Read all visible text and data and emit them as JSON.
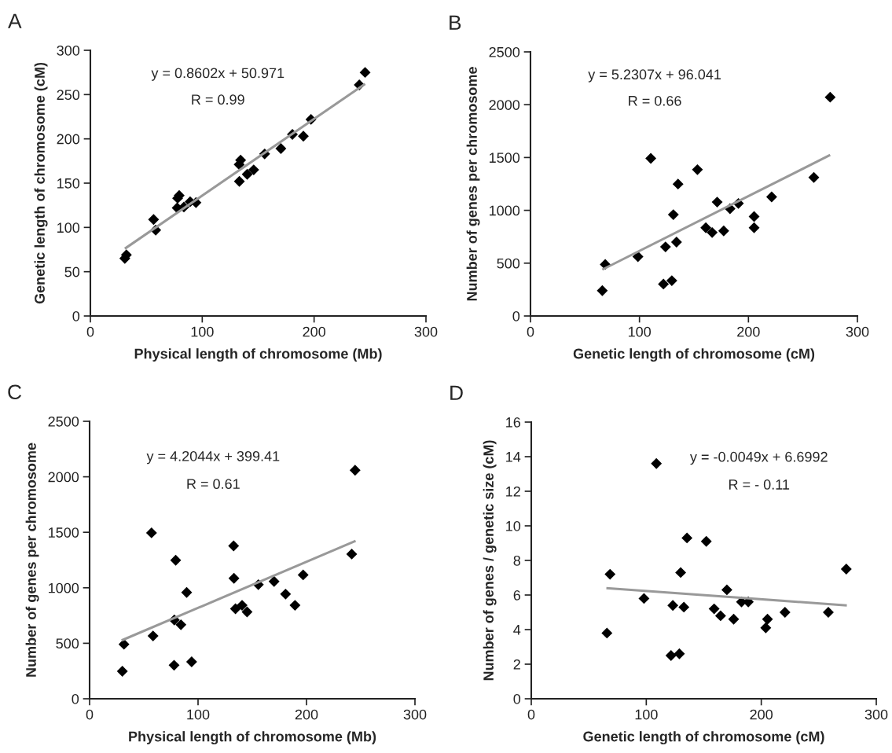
{
  "chart_data": [
    {
      "type": "scatter",
      "title": "A",
      "xlabel": "Physical length of chromosome (Mb)",
      "ylabel": "Genetic length of chromosome (cM)",
      "xlim": [
        0,
        300
      ],
      "xticks": [
        0,
        100,
        200,
        300
      ],
      "ylim": [
        0,
        300
      ],
      "yticks": [
        0,
        50,
        100,
        150,
        200,
        250,
        300
      ],
      "grid": false,
      "annotations": [
        "y = 0.8602x + 50.971",
        "R = 0.99"
      ],
      "series": [
        {
          "marker": "diamond",
          "color": "#000000",
          "x": [
            30.8,
            32.2,
            56.5,
            58.4,
            77.6,
            78,
            79.4,
            83.6,
            89.2,
            94.4,
            133,
            134.3,
            133.2,
            140.2,
            146,
            155.8,
            170.3,
            180.6,
            190.4,
            197.2,
            240.4,
            245.6
          ],
          "values": [
            65,
            69,
            109,
            97,
            122,
            133,
            136,
            123,
            129,
            128,
            171,
            176,
            152,
            160,
            165,
            183,
            189,
            205,
            203,
            222,
            261,
            275
          ]
        },
        {
          "type": "line",
          "marker": "none",
          "color": "#999999",
          "x": [
            30.8,
            245.6
          ],
          "values": [
            76,
            262
          ]
        }
      ]
    },
    {
      "type": "scatter",
      "title": "B",
      "xlabel": "Genetic length of chromosome (cM)",
      "ylabel": "Number of genes per chromosome",
      "xlim": [
        0,
        300
      ],
      "xticks": [
        0,
        100,
        200,
        300
      ],
      "ylim": [
        0,
        2500
      ],
      "yticks": [
        0,
        500,
        1000,
        1500,
        2000,
        2500
      ],
      "grid": false,
      "annotations": [
        "y = 5.2307x + 96.041",
        "R = 0.66"
      ],
      "series": [
        {
          "marker": "diamond",
          "color": "#000000",
          "x": [
            65.9,
            68.6,
            98.6,
            110.4,
            122,
            123.9,
            129.7,
            131.1,
            134,
            135.4,
            153.2,
            160.9,
            166.7,
            171.3,
            177.3,
            183.1,
            190.8,
            205.2,
            205.2,
            221.3,
            260,
            275
          ],
          "values": [
            240,
            488,
            562,
            1492,
            302,
            654,
            334,
            959,
            699,
            1249,
            1385,
            835,
            790,
            1078,
            805,
            1016,
            1065,
            941,
            835,
            1127,
            1311,
            2071
          ]
        },
        {
          "type": "line",
          "marker": "none",
          "color": "#999999",
          "x": [
            65.9,
            275
          ],
          "values": [
            439,
            1524
          ]
        }
      ]
    },
    {
      "type": "scatter",
      "title": "C",
      "xlabel": "Physical length of chromosome (Mb)",
      "ylabel": "Number of genes per chromosome",
      "xlim": [
        0,
        300
      ],
      "xticks": [
        0,
        100,
        200,
        300
      ],
      "ylim": [
        0,
        2500
      ],
      "yticks": [
        0,
        500,
        1000,
        1500,
        2000,
        2500
      ],
      "grid": false,
      "annotations": [
        "y = 4.2044x + 399.41",
        "R = 0.61"
      ],
      "series": [
        {
          "marker": "diamond",
          "color": "#000000",
          "x": [
            30.2,
            31.7,
            57.1,
            58.5,
            77.9,
            78.1,
            79.4,
            84.2,
            89.5,
            94.1,
            132.8,
            133.1,
            134.5,
            140.6,
            145.2,
            155.6,
            170.1,
            180.7,
            189.4,
            196.9,
            241.7,
            244.8
          ],
          "values": [
            248,
            491,
            1495,
            566,
            302,
            710,
            1248,
            667,
            958,
            333,
            1377,
            1085,
            811,
            842,
            783,
            1028,
            1057,
            943,
            842,
            1116,
            1304,
            2059
          ]
        },
        {
          "type": "line",
          "marker": "none",
          "color": "#999999",
          "x": [
            29.5,
            245.3
          ],
          "values": [
            526,
            1422
          ]
        }
      ]
    },
    {
      "type": "scatter",
      "title": "D",
      "xlabel": "Genetic length of chromosome (cM)",
      "ylabel": "Number of genes / genetic size (cM)",
      "xlim": [
        0,
        300
      ],
      "xticks": [
        0,
        100,
        200,
        300
      ],
      "ylim": [
        0,
        16
      ],
      "yticks": [
        0,
        2,
        4,
        6,
        8,
        10,
        12,
        14,
        16
      ],
      "grid": false,
      "annotations": [
        "y = -0.0049x + 6.6992",
        "R = - 0.11"
      ],
      "series": [
        {
          "marker": "diamond",
          "color": "#000000",
          "x": [
            65.8,
            68.5,
            98,
            108.8,
            121.5,
            123.1,
            128.8,
            129.9,
            132.7,
            135.4,
            152.2,
            159,
            164.6,
            170.1,
            176,
            182.8,
            188.7,
            203.9,
            205.4,
            220.6,
            258.3,
            273.9
          ],
          "values": [
            3.8,
            7.2,
            5.8,
            13.6,
            2.5,
            5.4,
            2.6,
            7.3,
            5.3,
            9.3,
            9.1,
            5.2,
            4.8,
            6.3,
            4.6,
            5.6,
            5.6,
            4.1,
            4.6,
            5.0,
            5.0,
            7.5
          ]
        },
        {
          "type": "line",
          "marker": "none",
          "color": "#999999",
          "x": [
            65.3,
            274.4
          ],
          "values": [
            6.4,
            5.4
          ]
        }
      ]
    }
  ]
}
